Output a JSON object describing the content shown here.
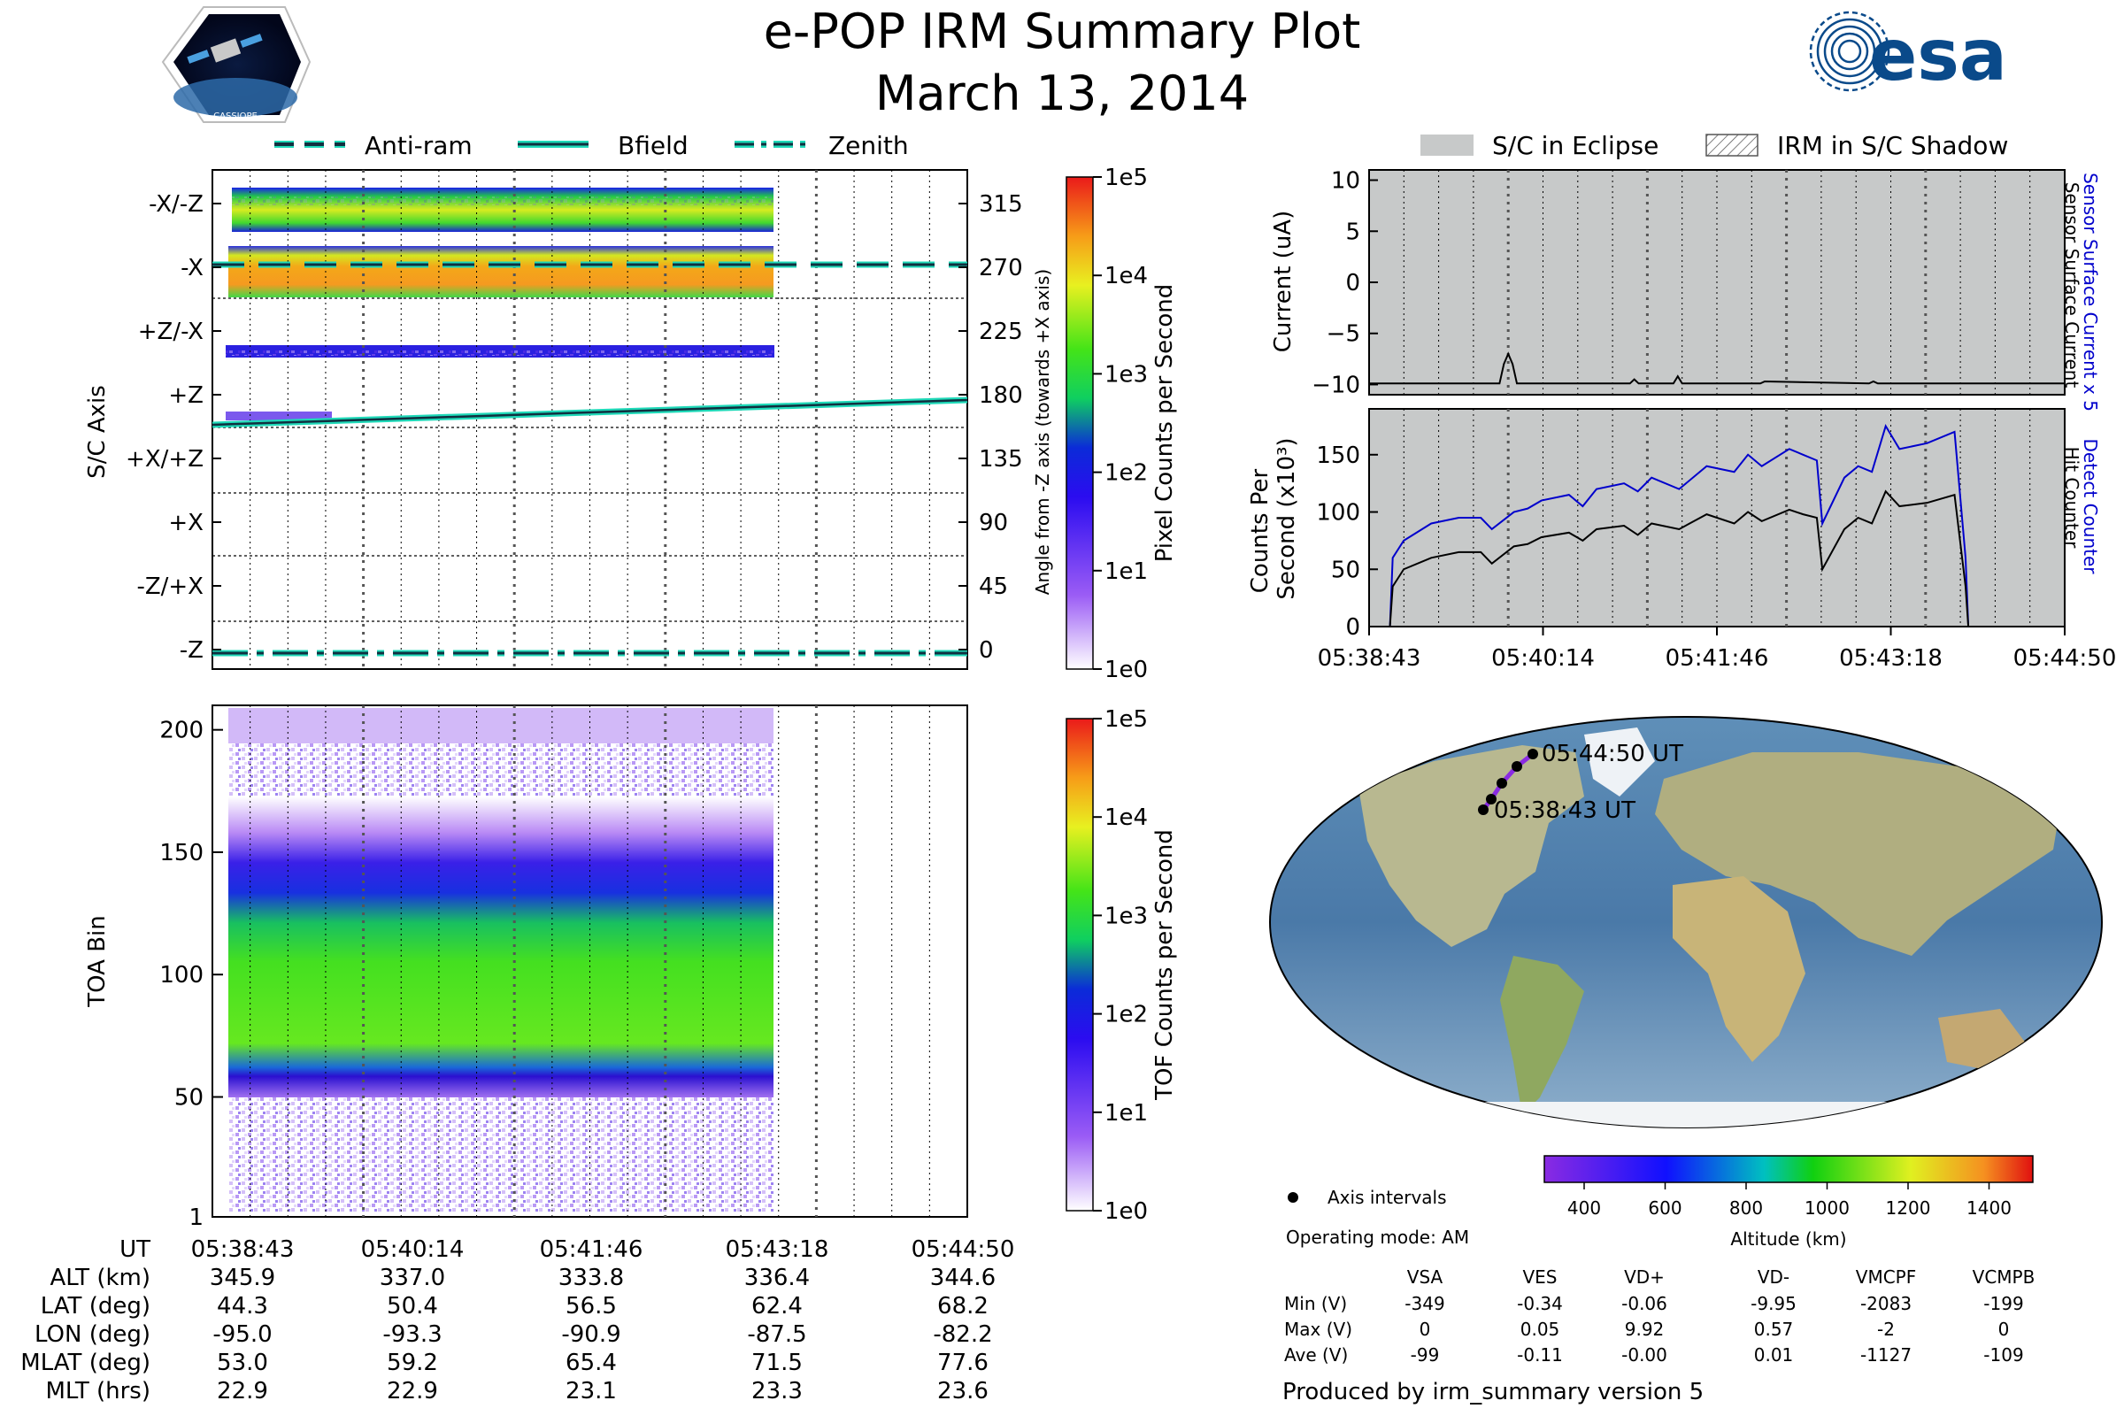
{
  "header": {
    "title": "e-POP IRM Summary Plot",
    "date": "March 13, 2014",
    "mission_logo_text": "CASSIOPE",
    "agency_logo_text": "esa"
  },
  "legend_left": [
    {
      "label": "Anti-ram",
      "style": "dashed"
    },
    {
      "label": "Bfield",
      "style": "solid"
    },
    {
      "label": "Zenith",
      "style": "dashdot"
    }
  ],
  "legend_right": [
    {
      "label": "S/C in Eclipse",
      "style": "fill"
    },
    {
      "label": "IRM in S/C Shadow",
      "style": "hatch"
    }
  ],
  "time_ticks": [
    "05:38:43",
    "05:40:14",
    "05:41:46",
    "05:43:18",
    "05:44:50"
  ],
  "chart_data": [
    {
      "type": "heatmap",
      "name": "sensor-axis-spectrogram",
      "ylabel": "S/C Axis",
      "y_categories": [
        "-X/-Z",
        "-X",
        "+Z/-X",
        "+Z",
        "+X/+Z",
        "+X",
        "-Z/+X",
        "-Z"
      ],
      "right_axis_label": "Angle from -Z axis (towards +X axis)",
      "right_ticks": [
        315,
        270,
        225,
        180,
        135,
        90,
        45,
        0
      ],
      "colorbar_label": "Pixel Counts per Second",
      "colorbar_ticks": [
        "1e5",
        "1e4",
        "1e3",
        "1e2",
        "1e1",
        "1e0"
      ],
      "lines": {
        "anti_ram_angle": 270,
        "zenith_angle": 0,
        "bfield_angle": [
          165,
          179
        ]
      }
    },
    {
      "type": "heatmap",
      "name": "toa-spectrogram",
      "ylabel": "TOA Bin",
      "y_ticks": [
        1,
        50,
        100,
        150,
        200
      ],
      "ylim": [
        1,
        210
      ],
      "colorbar_label": "TOF Counts per Second",
      "colorbar_ticks": [
        "1e5",
        "1e4",
        "1e3",
        "1e2",
        "1e1",
        "1e0"
      ],
      "low_edge_bin": [
        60,
        55
      ],
      "peak_bin_range": [
        65,
        110
      ]
    },
    {
      "type": "line",
      "name": "sensor-surface-current",
      "ylabel": "Current (uA)",
      "right_label_blue": "Sensor Surface Current x 5",
      "right_label_black": "Sensor Surface Current",
      "y_ticks": [
        10,
        5,
        0,
        -5,
        -10
      ],
      "ylim": [
        -11,
        11
      ],
      "x": [
        0,
        0.3,
        0.31,
        0.32,
        0.33,
        0.34,
        0.6,
        0.61,
        0.62,
        0.7,
        0.71,
        0.72,
        0.9,
        0.91,
        1.15,
        1.16,
        1.17,
        1.5,
        1.6
      ],
      "values": [
        -9.9,
        -9.9,
        -8,
        -7,
        -8,
        -9.9,
        -9.9,
        -9.5,
        -9.9,
        -9.9,
        -9.2,
        -9.9,
        -9.9,
        -9.7,
        -9.9,
        -9.7,
        -9.9,
        -9.9,
        -9.9
      ]
    },
    {
      "type": "line",
      "name": "detector-hit-counts",
      "ylabel": "Counts Per Second (x10³)",
      "right_label_blue": "Detect Counter",
      "right_label_black": "Hit Counter",
      "y_ticks": [
        0,
        50,
        100,
        150
      ],
      "ylim": [
        0,
        190
      ],
      "series": [
        {
          "name": "Detect Counter",
          "color": "#0000cc",
          "x": [
            0,
            0.05,
            0.06,
            0.1,
            0.2,
            0.3,
            0.38,
            0.42,
            0.5,
            0.55,
            0.6,
            0.7,
            0.75,
            0.8,
            0.9,
            0.95,
            1.0,
            1.1,
            1.2,
            1.3,
            1.35,
            1.4,
            1.5,
            1.55,
            1.6,
            1.62,
            1.7,
            1.75,
            1.8,
            1.85,
            1.9,
            2.0,
            2.1,
            2.14,
            2.15,
            2.2,
            2.3,
            2.5
          ],
          "values": [
            0,
            0,
            60,
            75,
            90,
            95,
            95,
            85,
            100,
            103,
            110,
            115,
            105,
            120,
            125,
            118,
            130,
            120,
            140,
            135,
            150,
            140,
            155,
            150,
            145,
            90,
            130,
            140,
            135,
            175,
            155,
            160,
            170,
            60,
            0,
            0,
            0,
            0
          ]
        },
        {
          "name": "Hit Counter",
          "color": "#000000",
          "x": [
            0,
            0.05,
            0.06,
            0.1,
            0.2,
            0.3,
            0.38,
            0.42,
            0.5,
            0.55,
            0.6,
            0.7,
            0.75,
            0.8,
            0.9,
            0.95,
            1.0,
            1.1,
            1.2,
            1.3,
            1.35,
            1.4,
            1.5,
            1.55,
            1.6,
            1.62,
            1.7,
            1.75,
            1.8,
            1.85,
            1.9,
            2.0,
            2.1,
            2.14,
            2.15,
            2.2,
            2.3,
            2.5
          ],
          "values": [
            0,
            0,
            35,
            50,
            60,
            65,
            65,
            55,
            70,
            72,
            78,
            82,
            75,
            85,
            88,
            80,
            90,
            85,
            98,
            90,
            100,
            92,
            102,
            98,
            95,
            50,
            85,
            95,
            90,
            118,
            105,
            108,
            115,
            35,
            0,
            0,
            0,
            0
          ]
        }
      ]
    }
  ],
  "time_axis_right": [
    "05:38:43",
    "05:40:14",
    "05:41:46",
    "05:43:18",
    "05:44:50"
  ],
  "map": {
    "start_label": "05:38:43 UT",
    "end_label": "05:44:50 UT",
    "track": [
      [
        -95.0,
        44.3
      ],
      [
        -93.3,
        50.4
      ],
      [
        -90.9,
        56.5
      ],
      [
        -87.5,
        62.4
      ],
      [
        -82.2,
        68.2
      ]
    ],
    "legend_point": "Axis intervals",
    "operating_mode": "Operating mode: AM",
    "altitude_label": "Altitude (km)",
    "altitude_ticks": [
      "400",
      "600",
      "800",
      "1000",
      "1200",
      "1400"
    ]
  },
  "ephemeris": {
    "rows": [
      {
        "label": "UT",
        "values": [
          "05:38:43",
          "05:40:14",
          "05:41:46",
          "05:43:18",
          "05:44:50"
        ]
      },
      {
        "label": "ALT (km)",
        "values": [
          "345.9",
          "337.0",
          "333.8",
          "336.4",
          "344.6"
        ]
      },
      {
        "label": "LAT (deg)",
        "values": [
          "44.3",
          "50.4",
          "56.5",
          "62.4",
          "68.2"
        ]
      },
      {
        "label": "LON (deg)",
        "values": [
          "-95.0",
          "-93.3",
          "-90.9",
          "-87.5",
          "-82.2"
        ]
      },
      {
        "label": "MLAT (deg)",
        "values": [
          "53.0",
          "59.2",
          "65.4",
          "71.5",
          "77.6"
        ]
      },
      {
        "label": "MLT (hrs)",
        "values": [
          "22.9",
          "22.9",
          "23.1",
          "23.3",
          "23.6"
        ]
      }
    ]
  },
  "voltage_table": {
    "headers": [
      "VSA",
      "VES",
      "VD+",
      "VD-",
      "VMCPF",
      "VCMPB"
    ],
    "rows": [
      {
        "label": "Min (V)",
        "values": [
          "-349",
          "-0.34",
          "-0.06",
          "-9.95",
          "-2083",
          "-199"
        ]
      },
      {
        "label": "Max (V)",
        "values": [
          "0",
          "0.05",
          "9.92",
          "0.57",
          "-2",
          "0"
        ]
      },
      {
        "label": "Ave (V)",
        "values": [
          "-99",
          "-0.11",
          "-0.00",
          "0.01",
          "-1127",
          "-109"
        ]
      }
    ]
  },
  "footer": "Produced by irm_summary version 5",
  "colors": {
    "eclipse_fill": "#c7c9c9",
    "teal": "#1fd9b8",
    "blue_label": "#0000cc"
  }
}
